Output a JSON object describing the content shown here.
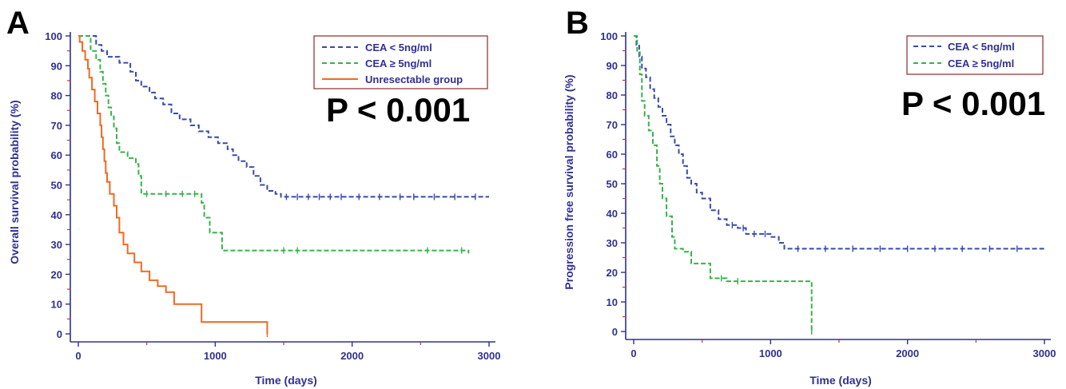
{
  "chart_data": [
    {
      "type": "line",
      "panel": "A",
      "ylabel": "Overall survival probability (%)",
      "xlabel": "Time (days)",
      "xlim": [
        0,
        3000
      ],
      "ylim": [
        0,
        100
      ],
      "xticks": [
        0,
        1000,
        2000,
        3000
      ],
      "yticks": [
        0,
        10,
        20,
        30,
        40,
        50,
        60,
        70,
        80,
        90,
        100
      ],
      "legend_position": "top-right",
      "annotation": "P < 0.001",
      "series": [
        {
          "name": "CEA < 5ng/ml",
          "color": "#3a4aa8",
          "dash": "dashed",
          "points": [
            [
              0,
              100
            ],
            [
              100,
              100
            ],
            [
              130,
              97
            ],
            [
              170,
              95
            ],
            [
              210,
              93
            ],
            [
              300,
              91
            ],
            [
              380,
              88
            ],
            [
              420,
              85
            ],
            [
              460,
              83
            ],
            [
              520,
              81
            ],
            [
              560,
              79
            ],
            [
              620,
              77
            ],
            [
              680,
              74
            ],
            [
              740,
              72
            ],
            [
              820,
              70
            ],
            [
              880,
              68
            ],
            [
              950,
              66
            ],
            [
              1020,
              64
            ],
            [
              1090,
              62
            ],
            [
              1130,
              60
            ],
            [
              1170,
              58
            ],
            [
              1230,
              56
            ],
            [
              1280,
              53
            ],
            [
              1330,
              50
            ],
            [
              1380,
              48
            ],
            [
              1440,
              47
            ],
            [
              1480,
              46
            ],
            [
              3000,
              46
            ]
          ],
          "censor": [
            1520,
            1600,
            1680,
            1760,
            1840,
            1920,
            2050,
            2200,
            2350,
            2450,
            2600,
            2750,
            2900
          ]
        },
        {
          "name": "CEA ≥ 5ng/ml",
          "color": "#37b34a",
          "dash": "dashed",
          "points": [
            [
              0,
              100
            ],
            [
              60,
              100
            ],
            [
              90,
              95
            ],
            [
              130,
              92
            ],
            [
              160,
              88
            ],
            [
              180,
              84
            ],
            [
              200,
              80
            ],
            [
              220,
              76
            ],
            [
              240,
              73
            ],
            [
              260,
              69
            ],
            [
              280,
              64
            ],
            [
              300,
              61
            ],
            [
              360,
              59
            ],
            [
              420,
              57
            ],
            [
              440,
              53
            ],
            [
              460,
              47
            ],
            [
              900,
              44
            ],
            [
              920,
              39
            ],
            [
              960,
              34
            ],
            [
              1050,
              28
            ],
            [
              2850,
              27
            ]
          ],
          "censor": [
            500,
            640,
            760,
            850,
            1500,
            1600,
            2550,
            2800
          ]
        },
        {
          "name": "Unresectable group",
          "color": "#ee6a22",
          "dash": "solid",
          "points": [
            [
              0,
              100
            ],
            [
              10,
              98
            ],
            [
              30,
              95
            ],
            [
              50,
              92
            ],
            [
              70,
              89
            ],
            [
              80,
              86
            ],
            [
              100,
              82
            ],
            [
              120,
              78
            ],
            [
              140,
              74
            ],
            [
              160,
              70
            ],
            [
              170,
              66
            ],
            [
              180,
              62
            ],
            [
              190,
              58
            ],
            [
              200,
              54
            ],
            [
              210,
              51
            ],
            [
              230,
              47
            ],
            [
              260,
              43
            ],
            [
              280,
              39
            ],
            [
              300,
              34
            ],
            [
              330,
              30
            ],
            [
              360,
              27
            ],
            [
              410,
              24
            ],
            [
              460,
              21
            ],
            [
              520,
              18
            ],
            [
              580,
              16
            ],
            [
              640,
              14
            ],
            [
              700,
              10
            ],
            [
              900,
              4
            ],
            [
              1380,
              4
            ],
            [
              1380,
              0
            ]
          ],
          "censor": [
            1380
          ]
        }
      ]
    },
    {
      "type": "line",
      "panel": "B",
      "ylabel": "Progression free survival probability (%)",
      "xlabel": "Time (days)",
      "xlim": [
        0,
        3000
      ],
      "ylim": [
        0,
        100
      ],
      "xticks": [
        0,
        1000,
        2000,
        3000
      ],
      "yticks": [
        0,
        10,
        20,
        30,
        40,
        50,
        60,
        70,
        80,
        90,
        100
      ],
      "legend_position": "top-right",
      "annotation": "P < 0.001",
      "series": [
        {
          "name": "CEA < 5ng/ml",
          "color": "#3a4aa8",
          "dash": "dashed",
          "points": [
            [
              0,
              100
            ],
            [
              20,
              97
            ],
            [
              40,
              93
            ],
            [
              60,
              89
            ],
            [
              90,
              86
            ],
            [
              120,
              82
            ],
            [
              150,
              79
            ],
            [
              180,
              76
            ],
            [
              210,
              73
            ],
            [
              240,
              70
            ],
            [
              270,
              66
            ],
            [
              300,
              63
            ],
            [
              330,
              60
            ],
            [
              360,
              56
            ],
            [
              390,
              52
            ],
            [
              420,
              50
            ],
            [
              460,
              47
            ],
            [
              500,
              45
            ],
            [
              560,
              41
            ],
            [
              620,
              38
            ],
            [
              680,
              36
            ],
            [
              760,
              35
            ],
            [
              820,
              33
            ],
            [
              900,
              33
            ],
            [
              1000,
              32
            ],
            [
              1060,
              30
            ],
            [
              1100,
              28
            ],
            [
              3000,
              28
            ]
          ],
          "censor": [
            720,
            800,
            880,
            960,
            1200,
            1400,
            1600,
            1800,
            2000,
            2200,
            2400,
            2600,
            2800
          ]
        },
        {
          "name": "CEA ≥ 5ng/ml",
          "color": "#37b34a",
          "dash": "dashed",
          "points": [
            [
              0,
              100
            ],
            [
              25,
              95
            ],
            [
              45,
              87
            ],
            [
              60,
              78
            ],
            [
              80,
              73
            ],
            [
              110,
              68
            ],
            [
              140,
              63
            ],
            [
              170,
              56
            ],
            [
              190,
              50
            ],
            [
              210,
              45
            ],
            [
              240,
              39
            ],
            [
              280,
              32
            ],
            [
              300,
              28
            ],
            [
              360,
              27
            ],
            [
              420,
              23
            ],
            [
              560,
              18
            ],
            [
              680,
              17
            ],
            [
              1300,
              17
            ],
            [
              1300,
              0
            ]
          ],
          "censor": [
            640,
            760,
            1300
          ]
        }
      ]
    }
  ]
}
